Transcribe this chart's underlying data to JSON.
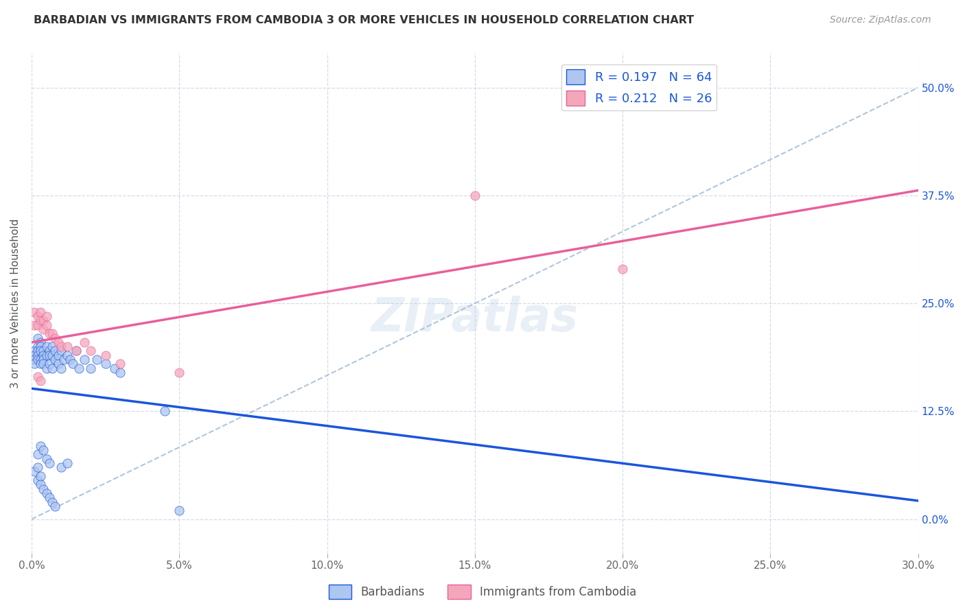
{
  "title": "BARBADIAN VS IMMIGRANTS FROM CAMBODIA 3 OR MORE VEHICLES IN HOUSEHOLD CORRELATION CHART",
  "source": "Source: ZipAtlas.com",
  "xlim": [
    0.0,
    0.3
  ],
  "ylim": [
    -0.04,
    0.54
  ],
  "barbadian_scatter_x": [
    0.001,
    0.001,
    0.001,
    0.001,
    0.002,
    0.002,
    0.002,
    0.002,
    0.002,
    0.003,
    0.003,
    0.003,
    0.003,
    0.003,
    0.004,
    0.004,
    0.004,
    0.004,
    0.005,
    0.005,
    0.005,
    0.006,
    0.006,
    0.006,
    0.007,
    0.007,
    0.007,
    0.008,
    0.008,
    0.009,
    0.009,
    0.01,
    0.01,
    0.011,
    0.012,
    0.013,
    0.014,
    0.015,
    0.016,
    0.018,
    0.02,
    0.022,
    0.025,
    0.028,
    0.03,
    0.002,
    0.003,
    0.004,
    0.005,
    0.006,
    0.001,
    0.002,
    0.002,
    0.003,
    0.003,
    0.004,
    0.005,
    0.006,
    0.007,
    0.008,
    0.01,
    0.012,
    0.045,
    0.05
  ],
  "barbadian_scatter_y": [
    0.195,
    0.19,
    0.185,
    0.18,
    0.21,
    0.2,
    0.195,
    0.19,
    0.185,
    0.205,
    0.2,
    0.195,
    0.185,
    0.18,
    0.195,
    0.19,
    0.185,
    0.18,
    0.2,
    0.19,
    0.175,
    0.195,
    0.19,
    0.18,
    0.2,
    0.19,
    0.175,
    0.195,
    0.185,
    0.19,
    0.18,
    0.195,
    0.175,
    0.185,
    0.19,
    0.185,
    0.18,
    0.195,
    0.175,
    0.185,
    0.175,
    0.185,
    0.18,
    0.175,
    0.17,
    0.075,
    0.085,
    0.08,
    0.07,
    0.065,
    0.055,
    0.06,
    0.045,
    0.05,
    0.04,
    0.035,
    0.03,
    0.025,
    0.02,
    0.015,
    0.06,
    0.065,
    0.125,
    0.01
  ],
  "cambodia_scatter_x": [
    0.001,
    0.001,
    0.002,
    0.002,
    0.003,
    0.003,
    0.004,
    0.004,
    0.005,
    0.005,
    0.006,
    0.007,
    0.008,
    0.009,
    0.01,
    0.012,
    0.015,
    0.018,
    0.02,
    0.025,
    0.03,
    0.05,
    0.002,
    0.003,
    0.15,
    0.2
  ],
  "cambodia_scatter_y": [
    0.24,
    0.225,
    0.235,
    0.225,
    0.24,
    0.23,
    0.23,
    0.22,
    0.235,
    0.225,
    0.215,
    0.215,
    0.21,
    0.205,
    0.2,
    0.2,
    0.195,
    0.205,
    0.195,
    0.19,
    0.18,
    0.17,
    0.165,
    0.16,
    0.375,
    0.29
  ],
  "barbadian_color": "#aec6f0",
  "cambodia_color": "#f4a7bb",
  "barbadian_line_color": "#1a56db",
  "cambodia_line_color": "#e8609a",
  "dashed_line_color": "#9bb8d4",
  "R_barbadian": 0.197,
  "N_barbadian": 64,
  "R_cambodia": 0.212,
  "N_cambodia": 26,
  "watermark": "ZIPatlas",
  "background_color": "#ffffff",
  "grid_color": "#d0d8e8"
}
